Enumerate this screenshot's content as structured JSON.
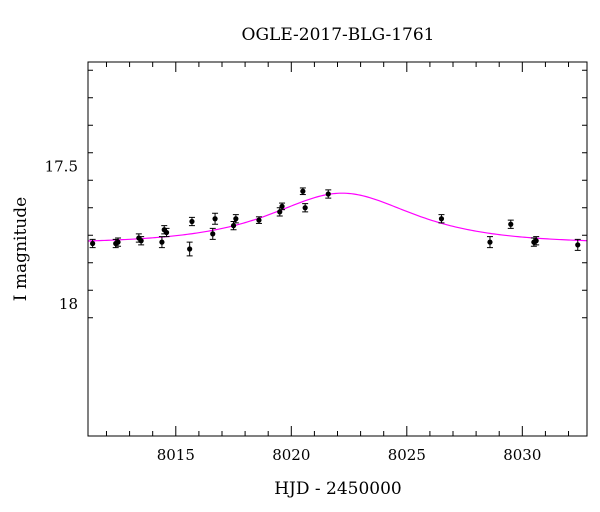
{
  "chart_data": {
    "type": "scatter",
    "title": "OGLE-2017-BLG-1761",
    "xlabel": "HJD - 2450000",
    "ylabel": "I magnitude",
    "xlim": [
      8011.2,
      8032.8
    ],
    "ylim": [
      18.48,
      17.12
    ],
    "y_inverted": true,
    "x_ticks": [
      8015,
      8020,
      8025,
      8030
    ],
    "y_ticks": [
      17.5,
      18
    ],
    "grid": false,
    "colors": {
      "data": "#000000",
      "model": "#ff00ff"
    },
    "series": [
      {
        "kind": "points_with_error",
        "x": [
          8011.4,
          8012.4,
          8012.5,
          8013.4,
          8013.5,
          8014.4,
          8014.5,
          8014.6,
          8015.6,
          8015.7,
          8016.6,
          8016.7,
          8017.5,
          8017.6,
          8018.6,
          8019.5,
          8019.6,
          8020.5,
          8020.6,
          8021.6,
          8026.5,
          8028.6,
          8029.5,
          8030.5,
          8030.6,
          8032.4
        ],
        "y": [
          17.78,
          17.78,
          17.775,
          17.76,
          17.77,
          17.775,
          17.73,
          17.74,
          17.8,
          17.7,
          17.745,
          17.69,
          17.715,
          17.69,
          17.695,
          17.665,
          17.645,
          17.59,
          17.65,
          17.6,
          17.69,
          17.775,
          17.71,
          17.775,
          17.77,
          17.785
        ],
        "err": [
          0.015,
          0.015,
          0.015,
          0.015,
          0.015,
          0.02,
          0.015,
          0.015,
          0.025,
          0.015,
          0.02,
          0.02,
          0.015,
          0.015,
          0.012,
          0.015,
          0.012,
          0.012,
          0.015,
          0.015,
          0.015,
          0.02,
          0.015,
          0.015,
          0.015,
          0.02
        ]
      },
      {
        "kind": "model_curve",
        "baseline": 17.78,
        "peak_mag": 17.597,
        "peak_x": 8022.2,
        "u0": 1.07,
        "tE": 3.75
      }
    ]
  }
}
